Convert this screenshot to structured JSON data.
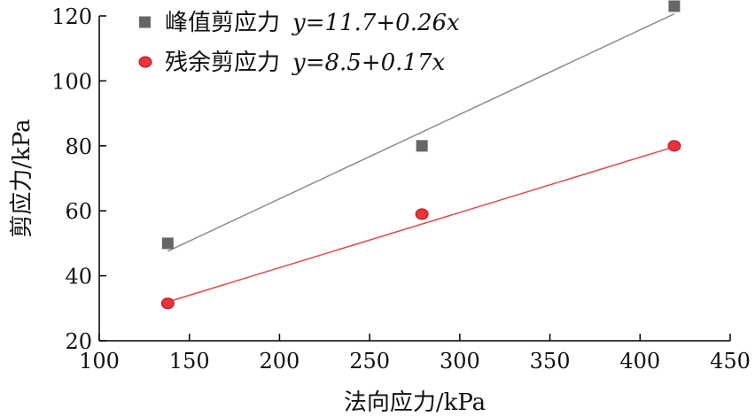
{
  "chart_data": {
    "type": "scatter",
    "xlabel": "法向应力/kPa",
    "ylabel": "剪应力/kPa",
    "xlim": [
      100,
      450
    ],
    "ylim": [
      20,
      120
    ],
    "xticks": [
      100,
      150,
      200,
      250,
      300,
      350,
      400,
      450
    ],
    "yticks": [
      20,
      40,
      60,
      80,
      100,
      120
    ],
    "grid": false,
    "legend_position": "top-left",
    "series": [
      {
        "name": "峰值剪应力",
        "equation": "y=11.7+0.26x",
        "marker": "square",
        "color": "#666666",
        "line_color": "#8c8c8c",
        "fit": {
          "intercept": 11.7,
          "slope": 0.26
        },
        "points": [
          {
            "x": 138,
            "y": 50
          },
          {
            "x": 279,
            "y": 80
          },
          {
            "x": 419,
            "y": 123
          }
        ]
      },
      {
        "name": "残余剪应力",
        "equation": "y=8.5+0.17x",
        "marker": "circle",
        "color": "#e8333c",
        "line_color": "#e04848",
        "fit": {
          "intercept": 8.5,
          "slope": 0.17
        },
        "points": [
          {
            "x": 138,
            "y": 31.5
          },
          {
            "x": 279,
            "y": 59
          },
          {
            "x": 419,
            "y": 80
          }
        ]
      }
    ]
  }
}
